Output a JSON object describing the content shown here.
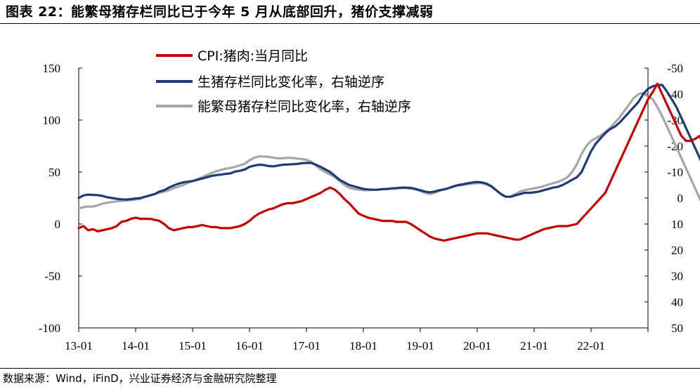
{
  "title": "图表 22：能繁母猪存栏同比已于今年 5 月从底部回升，猪价支撑减弱",
  "source": "数据来源：Wind，iFinD，兴业证券经济与金融研究院整理",
  "chart_data": {
    "type": "line",
    "x_tick_labels": [
      "13-01",
      "14-01",
      "15-01",
      "16-01",
      "17-01",
      "18-01",
      "19-01",
      "20-01",
      "21-01",
      "22-01"
    ],
    "x_start": "2013-01",
    "left_axis": {
      "ticks": [
        "150",
        "100",
        "50",
        "0",
        "-50",
        "-100"
      ],
      "ylim": [
        -100,
        150
      ]
    },
    "right_axis": {
      "ticks": [
        "-50",
        "-40",
        "-30",
        "-20",
        "-10",
        "0",
        "10",
        "20",
        "30",
        "40",
        "50"
      ],
      "ylim": [
        -50,
        50
      ],
      "reversed": true
    },
    "series": [
      {
        "name": "CPI:猪肉:当月同比",
        "axis": "left",
        "color": "#c00000",
        "values": [
          -4,
          -2,
          -6,
          -5,
          -7,
          -6,
          -5,
          -4,
          -2,
          2,
          3,
          5,
          6,
          5,
          5,
          5,
          4,
          3,
          0,
          -4,
          -6,
          -5,
          -4,
          -3,
          -3,
          -2,
          -1,
          -2,
          -3,
          -3,
          -4,
          -4,
          -4,
          -3,
          -2,
          0,
          3,
          7,
          10,
          12,
          14,
          15,
          17,
          19,
          20,
          20,
          21,
          22,
          24,
          26,
          28,
          30,
          33,
          35,
          33,
          29,
          24,
          20,
          15,
          10,
          8,
          6,
          5,
          4,
          3,
          3,
          3,
          2,
          2,
          2,
          0,
          -3,
          -6,
          -9,
          -12,
          -14,
          -15,
          -16,
          -15,
          -14,
          -13,
          -12,
          -11,
          -10,
          -9,
          -9,
          -9,
          -10,
          -11,
          -12,
          -13,
          -14,
          -15,
          -15,
          -13,
          -11,
          -9,
          -7,
          -5,
          -4,
          -3,
          -2,
          -2,
          -2,
          -1,
          0,
          5,
          10,
          15,
          20,
          25,
          30,
          40,
          50,
          60,
          70,
          80,
          90,
          100,
          110,
          120,
          127,
          135,
          125,
          115,
          105,
          95,
          85,
          80,
          80,
          82,
          85,
          60,
          40,
          20,
          5,
          -5,
          -10,
          -12,
          -15,
          -18,
          -20,
          -22,
          -24,
          -26,
          -28,
          -30,
          -33,
          -36,
          -39,
          -42,
          -45,
          -46,
          -47,
          -45,
          -43,
          -40,
          -37,
          -34,
          -36,
          -38,
          -40,
          -41,
          -42,
          -40,
          -35,
          -28,
          -18,
          -5,
          8,
          18,
          28,
          38,
          45,
          52
        ]
      },
      {
        "name": "生猪存栏同比变化率，右轴逆序",
        "axis": "right",
        "color": "#1f3b73",
        "values": [
          0,
          -1,
          -1.3,
          -1.2,
          -1.1,
          -0.8,
          -0.3,
          0,
          0.3,
          0.5,
          0.6,
          0.4,
          0.2,
          0,
          -0.5,
          -1,
          -1.5,
          -2.5,
          -3,
          -4,
          -4.8,
          -5.5,
          -6,
          -6.3,
          -6.5,
          -7,
          -7.5,
          -8,
          -8.5,
          -8.8,
          -9,
          -9.3,
          -9.5,
          -10.2,
          -10.5,
          -11,
          -12,
          -12.5,
          -12.8,
          -12.7,
          -12.3,
          -12.2,
          -12.5,
          -12.8,
          -12.9,
          -13,
          -13.1,
          -13.4,
          -13.5,
          -13.5,
          -12.8,
          -12,
          -11,
          -10,
          -8.5,
          -7,
          -6,
          -5,
          -4.5,
          -4,
          -3.5,
          -3.3,
          -3.2,
          -3.2,
          -3.4,
          -3.5,
          -3.7,
          -3.8,
          -4,
          -4,
          -3.9,
          -3.5,
          -3,
          -2.5,
          -2.2,
          -2.5,
          -3,
          -3.3,
          -3.8,
          -4.5,
          -5,
          -5.3,
          -5.7,
          -6,
          -6.2,
          -6,
          -5.5,
          -4.5,
          -3,
          -1.5,
          -0.5,
          -0.5,
          -1,
          -1.5,
          -2,
          -2,
          -2.2,
          -2.5,
          -3,
          -3.5,
          -4,
          -4.3,
          -5,
          -6,
          -7,
          -8,
          -10,
          -14,
          -18,
          -21,
          -23,
          -25,
          -26.5,
          -27.5,
          -29,
          -31,
          -33,
          -35,
          -37,
          -40,
          -42,
          -43,
          -43.5,
          -43.5,
          -41,
          -38,
          -35,
          -31,
          -27,
          -23,
          -19,
          -15,
          -11,
          -7,
          -3,
          1,
          5,
          9,
          14,
          19,
          23,
          22,
          18,
          25,
          28,
          30,
          31,
          31,
          30.5,
          30,
          29.5,
          29,
          28,
          26,
          25,
          22.5,
          22,
          24,
          27,
          31,
          27,
          23,
          19.5,
          17.5,
          15.5,
          13.5,
          11.5,
          9,
          7,
          5,
          3,
          1,
          -1,
          -2.5,
          -3.5,
          -4.5,
          -5.5,
          -6,
          -6.5,
          -6.8,
          -7,
          -6.5,
          -5.5,
          -4.5,
          -4,
          -3,
          -2.5,
          -2
        ]
      },
      {
        "name": "能繁母猪存栏同比变化率，右轴逆序",
        "axis": "right",
        "color": "#a6a6a6",
        "values": [
          4,
          3.5,
          3.3,
          3.3,
          2.8,
          2.2,
          1.8,
          1.5,
          1.3,
          1.1,
          1,
          0.8,
          0.6,
          0.3,
          -0.5,
          -1,
          -1.5,
          -2,
          -2.5,
          -3,
          -3.8,
          -4.3,
          -5,
          -5.8,
          -6.5,
          -7.3,
          -8,
          -8.8,
          -9.6,
          -10.3,
          -10.8,
          -11.3,
          -11.6,
          -12,
          -12.6,
          -13.2,
          -14.5,
          -15.5,
          -16,
          -16,
          -15.8,
          -15.5,
          -15.3,
          -15.3,
          -15.5,
          -15.4,
          -15.2,
          -15,
          -14.7,
          -14,
          -12.5,
          -11,
          -10,
          -9,
          -8,
          -6.5,
          -5,
          -4,
          -3.5,
          -3.2,
          -3,
          -3,
          -3.1,
          -3.2,
          -3.4,
          -3.5,
          -3.6,
          -3.7,
          -3.8,
          -3.8,
          -3.6,
          -3.3,
          -2.7,
          -2,
          -1.5,
          -2,
          -2.7,
          -3.3,
          -3.8,
          -4.3,
          -4.8,
          -5,
          -5.3,
          -5.5,
          -5.7,
          -5.7,
          -5.2,
          -4.3,
          -3,
          -1.5,
          -0.5,
          -0.5,
          -1.5,
          -2.5,
          -3,
          -3.4,
          -3.7,
          -4.1,
          -4.5,
          -5.2,
          -5.7,
          -6.2,
          -7,
          -8,
          -10,
          -13,
          -17,
          -20,
          -22,
          -23,
          -24,
          -25.5,
          -27,
          -29,
          -31,
          -33.5,
          -36,
          -38.5,
          -40,
          -40.5,
          -39,
          -38,
          -35,
          -31.5,
          -27.5,
          -23.5,
          -19.5,
          -15.5,
          -11.5,
          -7.5,
          -3.5,
          0.5,
          4.5,
          9,
          13.5,
          18,
          22,
          28,
          31,
          37,
          32,
          30,
          34,
          34.5,
          34.5,
          35,
          36.5,
          36.5,
          36.5,
          36.5,
          36.5,
          40,
          43,
          45,
          42,
          39,
          36,
          33,
          30,
          26,
          22,
          18,
          15,
          12,
          8,
          5,
          4,
          3,
          2,
          0,
          -1,
          -3,
          -5,
          -7,
          -7.5,
          -7,
          -6,
          -5.5,
          -5.5,
          -5,
          -2.5,
          0,
          -0.5
        ]
      }
    ],
    "grid": false,
    "legend": "top-center"
  }
}
